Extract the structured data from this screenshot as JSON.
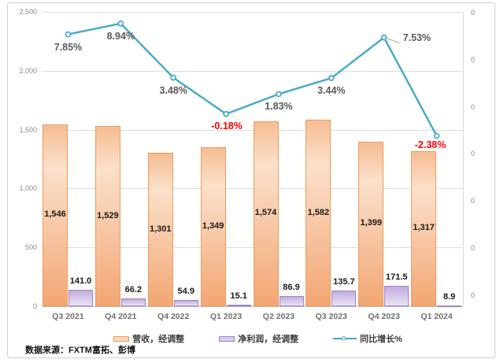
{
  "chart_data": {
    "type": "bar",
    "subtype": "combo-bar-line",
    "categories": [
      "Q3 2021",
      "Q4 2021",
      "Q4 2022",
      "Q1 2023",
      "Q2 2023",
      "Q3 2023",
      "Q4 2023",
      "Q1 2024"
    ],
    "series": [
      {
        "name": "营收，经调整",
        "type": "bar",
        "values": [
          1546,
          1529,
          1301,
          1349,
          1574,
          1582,
          1399,
          1317
        ],
        "labels": [
          "1,546",
          "1,529",
          "1,301",
          "1,349",
          "1,574",
          "1,582",
          "1,399",
          "1,317"
        ],
        "fill_top": "#F6BD92",
        "fill_mid": "#FBE0CB",
        "fill_bottom": "#F3A673",
        "border": "#ED9C5F",
        "legend_fill": "#FBD9BC"
      },
      {
        "name": "净利润，经调整",
        "type": "bar",
        "values": [
          141.0,
          66.2,
          54.9,
          15.1,
          86.9,
          135.7,
          171.5,
          8.9
        ],
        "labels": [
          "141.0",
          "66.2",
          "54.9",
          "15.1",
          "86.9",
          "135.7",
          "171.5",
          "8.9"
        ],
        "fill_top": "#C2ACDC",
        "fill_bottom": "#EAE3F5",
        "border": "#9C86C2",
        "legend_fill": "#D9CBEB"
      },
      {
        "name": "同比增长%",
        "type": "line",
        "values": [
          7.85,
          8.94,
          3.48,
          -0.18,
          1.83,
          3.44,
          7.53,
          -2.38
        ],
        "labels": [
          "7.85%",
          "8.94%",
          "3.48%",
          "-0.18%",
          "1.83%",
          "3.44%",
          "7.53%",
          "-2.38%"
        ],
        "color": "#45A9C7",
        "label_color": "#595959",
        "negative_label_color": "#FF0000"
      }
    ],
    "left_axis": {
      "ticks": [
        "2,500",
        "2,000",
        "1,500",
        "1,000",
        "500",
        "0"
      ],
      "min": 0,
      "max": 2500
    },
    "right_axis": {
      "ticks": [
        "0",
        "0",
        "0",
        "0",
        "0",
        "0",
        "0"
      ]
    },
    "grid": true,
    "legend_position": "bottom"
  },
  "source_note": "数据来源：FXTM富拓、彭博"
}
